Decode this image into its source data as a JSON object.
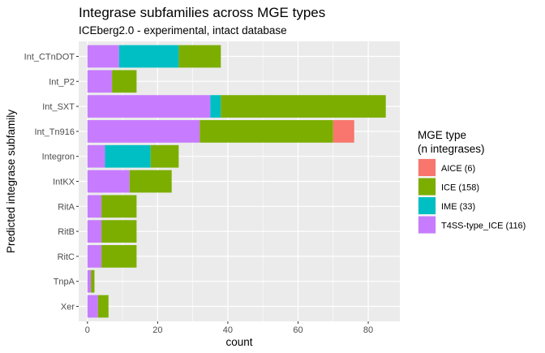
{
  "chart_data": {
    "type": "bar",
    "orientation": "horizontal",
    "stacked": true,
    "title": "Integrase subfamilies across MGE types",
    "subtitle": "ICEberg2.0 - experimental, intact database",
    "xlabel": "count",
    "ylabel": "Predicted integrase subfamily",
    "xlim": [
      -2.5,
      89
    ],
    "xticks": [
      0,
      20,
      40,
      60,
      80
    ],
    "grid": true,
    "legend_position": "right",
    "legend_title": "MGE type\n(n integrases)",
    "categories": [
      "Int_CTnDOT",
      "Int_P2",
      "Int_SXT",
      "Int_Tn916",
      "Integron",
      "IntKX",
      "RitA",
      "RitB",
      "RitC",
      "TnpA",
      "Xer"
    ],
    "series": [
      {
        "name": "T4SS-type_ICE (116)",
        "color": "#C77CFF",
        "values": [
          9,
          7,
          35,
          32,
          5,
          12,
          4,
          4,
          4,
          1,
          3
        ]
      },
      {
        "name": "IME (33)",
        "color": "#00BFC4",
        "values": [
          17,
          0,
          3,
          0,
          13,
          0,
          0,
          0,
          0,
          0,
          0
        ]
      },
      {
        "name": "ICE (158)",
        "color": "#7CAE00",
        "values": [
          12,
          7,
          47,
          38,
          8,
          12,
          10,
          10,
          10,
          1,
          3
        ]
      },
      {
        "name": "AICE (6)",
        "color": "#F8766D",
        "values": [
          0,
          0,
          0,
          6,
          0,
          0,
          0,
          0,
          0,
          0,
          0
        ]
      }
    ],
    "legend_order": [
      "AICE (6)",
      "ICE (158)",
      "IME (33)",
      "T4SS-type_ICE (116)"
    ]
  }
}
